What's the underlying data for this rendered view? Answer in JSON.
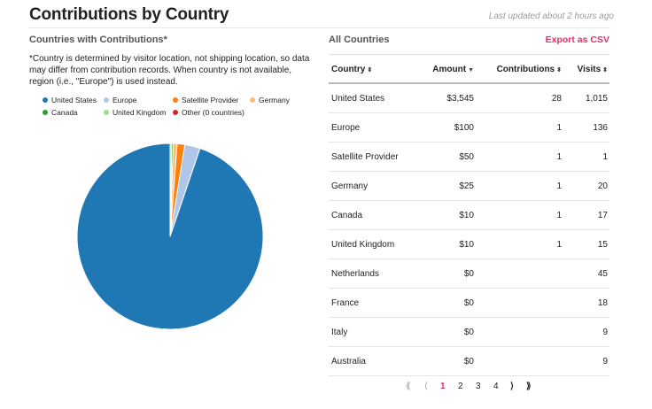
{
  "header": {
    "title": "Contributions by Country",
    "updated": "Last updated about 2 hours ago"
  },
  "left": {
    "subtitle": "Countries with Contributions*",
    "note": "*Country is determined by visitor location, not shipping location, so data may differ from contribution records. When country is not available, region (i.e., \"Europe\") is used instead.",
    "legend": [
      {
        "label": "United States",
        "color": "#1f77b4"
      },
      {
        "label": "Europe",
        "color": "#aec7e8"
      },
      {
        "label": "Satellite Provider",
        "color": "#ff7f0e"
      },
      {
        "label": "Germany",
        "color": "#ffbb78"
      },
      {
        "label": "Canada",
        "color": "#2ca02c"
      },
      {
        "label": "United Kingdom",
        "color": "#98df8a"
      },
      {
        "label": "Other (0 countries)",
        "color": "#d62728"
      }
    ]
  },
  "chart_data": {
    "type": "pie",
    "categories": [
      "United States",
      "Europe",
      "Satellite Provider",
      "Germany",
      "Canada",
      "United Kingdom",
      "Other (0 countries)"
    ],
    "values": [
      3545,
      100,
      50,
      25,
      10,
      10,
      0
    ],
    "colors": [
      "#1f77b4",
      "#aec7e8",
      "#ff7f0e",
      "#ffbb78",
      "#2ca02c",
      "#98df8a",
      "#d62728"
    ]
  },
  "right": {
    "subtitle": "All Countries",
    "export_label": "Export as CSV",
    "columns": {
      "country": "Country",
      "amount": "Amount",
      "contributions": "Contributions",
      "visits": "Visits"
    },
    "sort_icons": {
      "country": "⬍",
      "amount": "▼",
      "contributions": "⬍",
      "visits": "⬍"
    },
    "rows": [
      {
        "country": "United States",
        "amount": "$3,545",
        "contributions": "28",
        "visits": "1,015"
      },
      {
        "country": "Europe",
        "amount": "$100",
        "contributions": "1",
        "visits": "136"
      },
      {
        "country": "Satellite Provider",
        "amount": "$50",
        "contributions": "1",
        "visits": "1"
      },
      {
        "country": "Germany",
        "amount": "$25",
        "contributions": "1",
        "visits": "20"
      },
      {
        "country": "Canada",
        "amount": "$10",
        "contributions": "1",
        "visits": "17"
      },
      {
        "country": "United Kingdom",
        "amount": "$10",
        "contributions": "1",
        "visits": "15"
      },
      {
        "country": "Netherlands",
        "amount": "$0",
        "contributions": "",
        "visits": "45"
      },
      {
        "country": "France",
        "amount": "$0",
        "contributions": "",
        "visits": "18"
      },
      {
        "country": "Italy",
        "amount": "$0",
        "contributions": "",
        "visits": "9"
      },
      {
        "country": "Australia",
        "amount": "$0",
        "contributions": "",
        "visits": "9"
      }
    ],
    "pagination": {
      "first": "⟪",
      "prev": "⟨",
      "pages": [
        "1",
        "2",
        "3",
        "4"
      ],
      "active": "1",
      "next": "⟩",
      "last": "⟫"
    }
  }
}
